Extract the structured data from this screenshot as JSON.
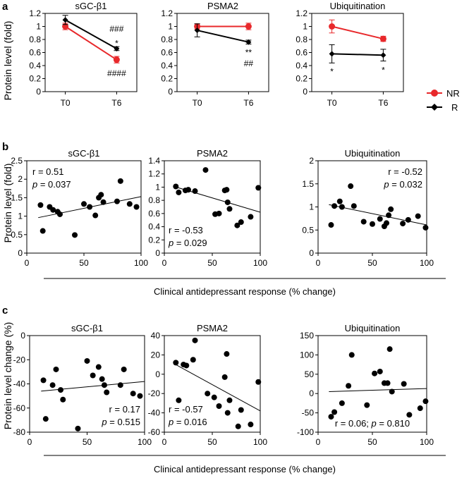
{
  "figure": {
    "panel_letters": [
      "a",
      "b",
      "c"
    ],
    "ylabel_a": "Protein level (fold)",
    "ylabel_b": "Protein level (fold)",
    "ylabel_c": "Protein level change (%)",
    "xlabel_bc": "Clinical antidepressant response (% change)",
    "legend": [
      {
        "name": "NR",
        "color": "#e8282b",
        "marker": "circle"
      },
      {
        "name": "R",
        "color": "#000000",
        "marker": "diamond"
      }
    ]
  },
  "chart_data": [
    {
      "id": "a1",
      "type": "line",
      "title": "sGC-β1",
      "categories": [
        "T0",
        "T6"
      ],
      "ylim": [
        0,
        1.2
      ],
      "yticks": [
        0,
        0.2,
        0.4,
        0.6,
        0.8,
        1,
        1.2
      ],
      "ytick_labels": [
        "0",
        "0.2",
        "0.4",
        "0.6",
        "0.8",
        "1",
        "1.2"
      ],
      "series": [
        {
          "name": "NR",
          "color": "#e8282b",
          "values": [
            1.0,
            0.49
          ],
          "errors": [
            0.05,
            0.05
          ]
        },
        {
          "name": "R",
          "color": "#000000",
          "values": [
            1.1,
            0.66
          ],
          "errors": [
            0.07,
            0.03
          ]
        }
      ],
      "annotations": [
        {
          "text": "###",
          "category": 1,
          "y": 0.96
        },
        {
          "text": "*",
          "category": 1,
          "y": 0.74
        },
        {
          "text": "####",
          "category": 1,
          "y": 0.28
        }
      ]
    },
    {
      "id": "a2",
      "type": "line",
      "title": "PSMA2",
      "categories": [
        "T0",
        "T6"
      ],
      "ylim": [
        0,
        1.2
      ],
      "yticks": [
        0,
        0.2,
        0.4,
        0.6,
        0.8,
        1,
        1.2
      ],
      "ytick_labels": [
        "0",
        "0.2",
        "0.4",
        "0.6",
        "0.8",
        "1",
        "1.2"
      ],
      "series": [
        {
          "name": "NR",
          "color": "#e8282b",
          "values": [
            1.0,
            1.0
          ],
          "errors": [
            0.04,
            0.05
          ]
        },
        {
          "name": "R",
          "color": "#000000",
          "values": [
            0.94,
            0.76
          ],
          "errors": [
            0.1,
            0.03
          ]
        }
      ],
      "annotations": [
        {
          "text": "**",
          "category": 1,
          "y": 0.6
        },
        {
          "text": "##",
          "category": 1,
          "y": 0.43
        }
      ]
    },
    {
      "id": "a3",
      "type": "line",
      "title": "Ubiquitination",
      "categories": [
        "T0",
        "T6"
      ],
      "ylim": [
        0,
        1.2
      ],
      "yticks": [
        0,
        0.2,
        0.4,
        0.6,
        0.8,
        1,
        1.2
      ],
      "ytick_labels": [
        "0",
        "0.2",
        "0.4",
        "0.6",
        "0.8",
        "1",
        "1.2"
      ],
      "series": [
        {
          "name": "NR",
          "color": "#e8282b",
          "values": [
            1.0,
            0.81
          ],
          "errors": [
            0.1,
            0.04
          ]
        },
        {
          "name": "R",
          "color": "#000000",
          "values": [
            0.58,
            0.56
          ],
          "errors": [
            0.14,
            0.09
          ]
        }
      ],
      "annotations": [
        {
          "text": "*",
          "category": 0,
          "y": 0.31
        },
        {
          "text": "*",
          "category": 1,
          "y": 0.33
        }
      ]
    },
    {
      "id": "b1",
      "type": "scatter",
      "title": "sGC-β1",
      "xlim": [
        0,
        100
      ],
      "ylim": [
        0,
        2.5
      ],
      "xticks": [
        0,
        50,
        100
      ],
      "xtick_labels": [
        "0",
        "50",
        "100"
      ],
      "yticks": [
        0,
        0.5,
        1,
        1.5,
        2,
        2.5
      ],
      "ytick_labels": [
        "0",
        "0.5",
        "1",
        "1.5",
        "2",
        "2.5"
      ],
      "x": [
        12,
        14,
        20,
        23,
        27,
        29,
        42,
        50,
        55,
        60,
        63,
        65,
        67,
        79,
        82,
        90,
        96
      ],
      "y": [
        1.3,
        0.6,
        1.25,
        1.17,
        1.12,
        1.05,
        0.49,
        1.33,
        1.25,
        1.02,
        1.5,
        1.58,
        1.38,
        1.4,
        1.95,
        1.33,
        1.25
      ],
      "fit": {
        "x": [
          10,
          100
        ],
        "y": [
          0.96,
          1.53
        ]
      },
      "stats": {
        "r": "r = 0.51",
        "p_label": "p",
        "p_value": " = 0.037",
        "position": "top-left"
      }
    },
    {
      "id": "b2",
      "type": "scatter",
      "title": "PSMA2",
      "xlim": [
        0,
        100
      ],
      "ylim": [
        0,
        1.4
      ],
      "xticks": [
        0,
        50,
        100
      ],
      "xtick_labels": [
        "0",
        "50",
        "100"
      ],
      "yticks": [
        0,
        0.2,
        0.4,
        0.6,
        0.8,
        1,
        1.2,
        1.4
      ],
      "ytick_labels": [
        "0",
        "0.2",
        "0.4",
        "0.6",
        "0.8",
        "1",
        "1.2",
        "1.4"
      ],
      "x": [
        12,
        15,
        22,
        25,
        32,
        43,
        53,
        57,
        63,
        65,
        66,
        68,
        76,
        80,
        90,
        98
      ],
      "y": [
        1.01,
        0.92,
        0.95,
        0.96,
        0.94,
        1.26,
        0.59,
        0.6,
        0.95,
        0.96,
        0.77,
        0.67,
        0.42,
        0.47,
        0.55,
        0.99
      ],
      "fit": {
        "x": [
          10,
          100
        ],
        "y": [
          1.01,
          0.62
        ]
      },
      "stats": {
        "r": "r = -0.53",
        "p_label": "p",
        "p_value": " = 0.029",
        "position": "bottom-left"
      }
    },
    {
      "id": "b3",
      "type": "scatter",
      "title": "Ubiquitination",
      "xlim": [
        0,
        100
      ],
      "ylim": [
        0,
        2
      ],
      "xticks": [
        0,
        50,
        100
      ],
      "xtick_labels": [
        "0",
        "50",
        "100"
      ],
      "yticks": [
        0,
        0.5,
        1,
        1.5,
        2
      ],
      "ytick_labels": [
        "0",
        "0.5",
        "1",
        "1.5",
        "2"
      ],
      "x": [
        12,
        15,
        20,
        22,
        30,
        33,
        42,
        50,
        57,
        61,
        63,
        65,
        67,
        78,
        83,
        92,
        99
      ],
      "y": [
        0.61,
        1.02,
        1.12,
        1.0,
        1.45,
        1.02,
        0.68,
        0.63,
        0.74,
        0.58,
        0.65,
        0.82,
        0.95,
        0.64,
        0.72,
        0.8,
        0.55
      ],
      "fit": {
        "x": [
          10,
          100
        ],
        "y": [
          1.05,
          0.61
        ]
      },
      "stats": {
        "r": "r = -0.52",
        "p_label": "p",
        "p_value": " = 0.032",
        "position": "top-right"
      }
    },
    {
      "id": "c1",
      "type": "scatter",
      "title": "sGC-β1",
      "xlim": [
        0,
        100
      ],
      "ylim": [
        -80,
        0
      ],
      "xticks": [
        0,
        50,
        100
      ],
      "xtick_labels": [
        "0",
        "50",
        "100"
      ],
      "yticks": [
        -80,
        -60,
        -40,
        -20,
        0
      ],
      "ytick_labels": [
        "-80",
        "-60",
        "-40",
        "-20",
        "0"
      ],
      "x": [
        12,
        14,
        20,
        23,
        27,
        29,
        42,
        50,
        55,
        60,
        63,
        65,
        67,
        79,
        82,
        90,
        96
      ],
      "y": [
        -37,
        -69,
        -41,
        -28,
        -45,
        -53,
        -77,
        -21,
        -33,
        -26,
        -36,
        -41,
        -47,
        -41,
        -28,
        -48,
        -50
      ],
      "fit": {
        "x": [
          10,
          100
        ],
        "y": [
          -46,
          -38
        ]
      },
      "stats": {
        "r": "r = 0.17",
        "p_label": "p",
        "p_value": " = 0.515",
        "position": "bottom-right"
      }
    },
    {
      "id": "c2",
      "type": "scatter",
      "title": "PSMA2",
      "xlim": [
        0,
        100
      ],
      "ylim": [
        -60,
        40
      ],
      "xticks": [
        0,
        50,
        100
      ],
      "xtick_labels": [
        "0",
        "50",
        "100"
      ],
      "yticks": [
        -60,
        -40,
        -20,
        0,
        20,
        40
      ],
      "ytick_labels": [
        "-60",
        "-40",
        "-20",
        "0",
        "20",
        "40"
      ],
      "x": [
        12,
        15,
        20,
        23,
        30,
        32,
        45,
        52,
        57,
        63,
        65,
        66,
        68,
        77,
        80,
        90,
        98
      ],
      "y": [
        12,
        -27,
        10,
        9,
        15,
        35,
        -20,
        -24,
        -33,
        -3,
        21,
        -40,
        -27,
        -54,
        -37,
        -52,
        -8
      ],
      "fit": {
        "x": [
          10,
          100
        ],
        "y": [
          11,
          -38
        ]
      },
      "stats": {
        "r": "r = -0.57",
        "p_label": "p",
        "p_value": " = 0.016",
        "position": "bottom-left"
      }
    },
    {
      "id": "c3",
      "type": "scatter",
      "title": "Ubiquitination",
      "xlim": [
        0,
        100
      ],
      "ylim": [
        -100,
        150
      ],
      "xticks": [
        0,
        50,
        100
      ],
      "xtick_labels": [
        "0",
        "50",
        "100"
      ],
      "yticks": [
        -100,
        -50,
        0,
        50,
        100,
        150
      ],
      "ytick_labels": [
        "-100",
        "-50",
        "0",
        "50",
        "100",
        "150"
      ],
      "x": [
        12,
        15,
        22,
        28,
        31,
        45,
        52,
        57,
        61,
        64,
        66,
        68,
        79,
        84,
        94,
        99
      ],
      "y": [
        -60,
        -48,
        -25,
        20,
        100,
        -30,
        52,
        57,
        27,
        27,
        115,
        5,
        25,
        -55,
        -38,
        -20
      ],
      "fit": {
        "x": [
          10,
          100
        ],
        "y": [
          5,
          13
        ]
      },
      "stats": {
        "r": "r = 0.06; ",
        "p_label": "p",
        "p_value": " = 0.810",
        "position": "bottom-center"
      }
    }
  ]
}
